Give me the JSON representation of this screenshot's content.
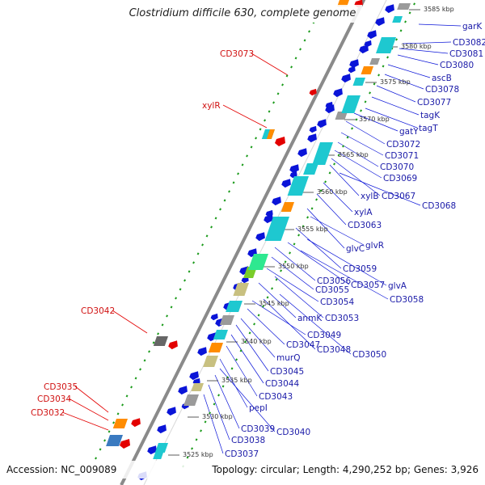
{
  "title": "Clostridium difficile 630, complete genome",
  "footer": {
    "accession": "Accession: NC_009089",
    "summary": "Topology: circular; Length: 4,290,252 bp; Genes: 3,926"
  },
  "colors": {
    "backbone": "#888888",
    "tick": "#1a9a1a",
    "gene_blue": "#0a14d8",
    "gene_red": "#e30000",
    "label_blue": "#1a1aa8",
    "label_red": "#d01010",
    "cyan": "#1ec8d0",
    "orange": "#ff8c00",
    "gray": "#9a9a9a",
    "green": "#2ee890",
    "khaki": "#c8c080"
  },
  "kbp_ticks": [
    {
      "label": "3525 kbp"
    },
    {
      "label": "3530 kbp"
    },
    {
      "label": "3535 kbp"
    },
    {
      "label": "3540 kbp"
    },
    {
      "label": "3545 kbp"
    },
    {
      "label": "3550 kbp"
    },
    {
      "label": "3555 kbp"
    },
    {
      "label": "3560 kbp"
    },
    {
      "label": "3565 kbp"
    },
    {
      "label": "3570 kbp"
    },
    {
      "label": "3575 kbp"
    },
    {
      "label": "3580 kbp"
    },
    {
      "label": "3585 kbp"
    }
  ],
  "gene_labels_forward": [
    {
      "text": "CD3073"
    },
    {
      "text": "xylR"
    },
    {
      "text": "CD3042"
    },
    {
      "text": "CD3035"
    },
    {
      "text": "CD3034"
    },
    {
      "text": "CD3032"
    }
  ],
  "gene_labels_reverse": [
    {
      "text": "garK"
    },
    {
      "text": "CD3082"
    },
    {
      "text": "CD3081"
    },
    {
      "text": "CD3080"
    },
    {
      "text": "ascB"
    },
    {
      "text": "CD3078"
    },
    {
      "text": "CD3077"
    },
    {
      "text": "tagK"
    },
    {
      "text": "tagT"
    },
    {
      "text": "gatY"
    },
    {
      "text": "CD3072"
    },
    {
      "text": "CD3071"
    },
    {
      "text": "CD3070"
    },
    {
      "text": "CD3069"
    },
    {
      "text": "xylB"
    },
    {
      "text": "CD3067"
    },
    {
      "text": "CD3068"
    },
    {
      "text": "xylA"
    },
    {
      "text": "CD3063"
    },
    {
      "text": "glvC"
    },
    {
      "text": "glvR"
    },
    {
      "text": "CD3059"
    },
    {
      "text": "CD3056"
    },
    {
      "text": "CD3057"
    },
    {
      "text": "glvA"
    },
    {
      "text": "CD3055"
    },
    {
      "text": "CD3058"
    },
    {
      "text": "CD3054"
    },
    {
      "text": "anmK"
    },
    {
      "text": "CD3053"
    },
    {
      "text": "CD3049"
    },
    {
      "text": "CD3047"
    },
    {
      "text": "CD3048"
    },
    {
      "text": "CD3050"
    },
    {
      "text": "murQ"
    },
    {
      "text": "CD3045"
    },
    {
      "text": "CD3044"
    },
    {
      "text": "CD3043"
    },
    {
      "text": "pepI"
    },
    {
      "text": "CD3039"
    },
    {
      "text": "CD3040"
    },
    {
      "text": "CD3038"
    },
    {
      "text": "CD3037"
    }
  ]
}
